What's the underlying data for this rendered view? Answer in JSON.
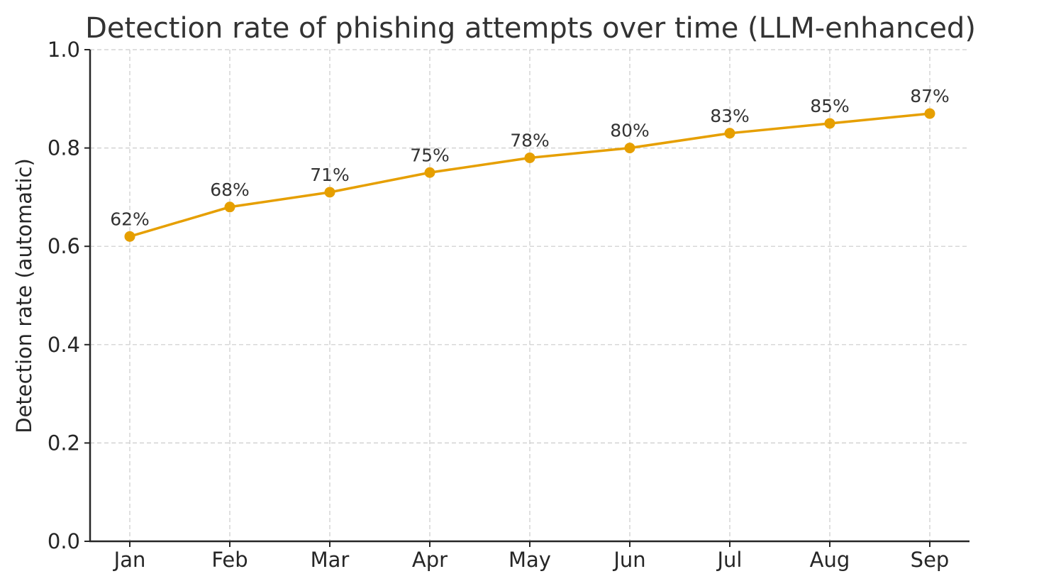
{
  "chart_data": {
    "type": "line",
    "title": "Detection rate of phishing attempts over time (LLM-enhanced)",
    "xlabel": "",
    "ylabel": "Detection rate (automatic)",
    "categories": [
      "Jan",
      "Feb",
      "Mar",
      "Apr",
      "May",
      "Jun",
      "Jul",
      "Aug",
      "Sep"
    ],
    "series": [
      {
        "name": "Detection rate",
        "values": [
          0.62,
          0.68,
          0.71,
          0.75,
          0.78,
          0.8,
          0.83,
          0.85,
          0.87
        ],
        "labels": [
          "62%",
          "68%",
          "71%",
          "75%",
          "78%",
          "80%",
          "83%",
          "85%",
          "87%"
        ],
        "color": "#E69F00",
        "marker": "circle"
      }
    ],
    "ylim": [
      0.0,
      1.0
    ],
    "yticks": [
      "0.0",
      "0.2",
      "0.4",
      "0.6",
      "0.8",
      "1.0"
    ],
    "grid": true,
    "legend": null
  }
}
